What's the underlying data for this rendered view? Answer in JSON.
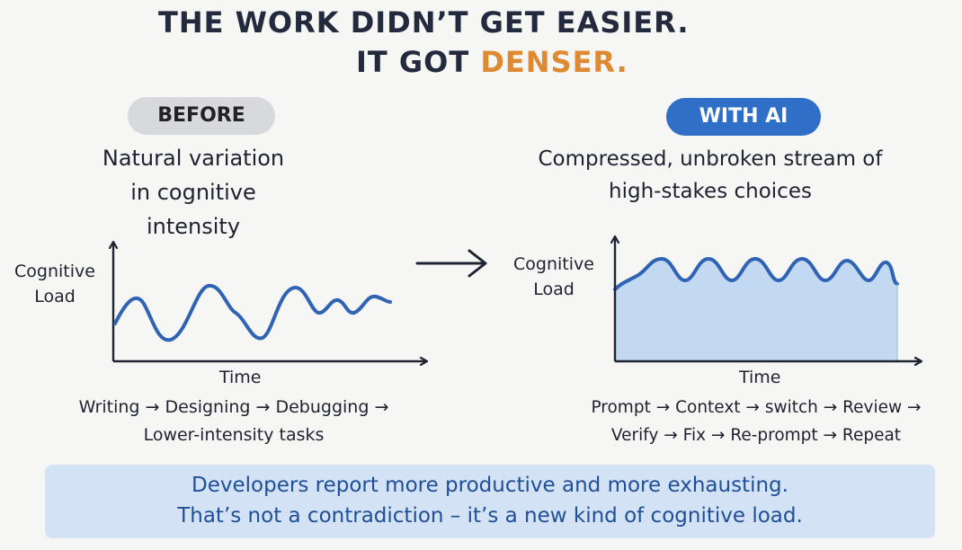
{
  "headline": {
    "line1": "THE WORK DIDN’T GET EASIER.",
    "line2_prefix": "IT GOT ",
    "line2_accent": "DENSER."
  },
  "before": {
    "pill": "BEFORE",
    "description": [
      "Natural variation",
      "in cognitive",
      "intensity"
    ],
    "y_label": [
      "Cognitive",
      "Load"
    ],
    "x_label": "Time",
    "flow": [
      "Writing → Designing → Debugging →",
      "Lower-intensity tasks"
    ]
  },
  "with_ai": {
    "pill": "WITH AI",
    "description": [
      "Compressed, unbroken stream of",
      "high-stakes choices"
    ],
    "y_label": [
      "Cognitive",
      "Load"
    ],
    "x_label": "Time",
    "flow": [
      "Prompt → Context → switch → Review →",
      "Verify → Fix → Re-prompt → Repeat"
    ]
  },
  "footer": {
    "line1": "Developers report more productive and more exhausting.",
    "line2": "That’s not a contradiction – it’s a new kind of cognitive load."
  },
  "colors": {
    "accent": "#dd8a33",
    "curve": "#2f63b4",
    "fill": "#c3d9f2",
    "pill_ai": "#2f6fc7",
    "pill_before": "#d7d9dd",
    "footer_bg": "#d3e2f4",
    "footer_text": "#1f4f98"
  }
}
